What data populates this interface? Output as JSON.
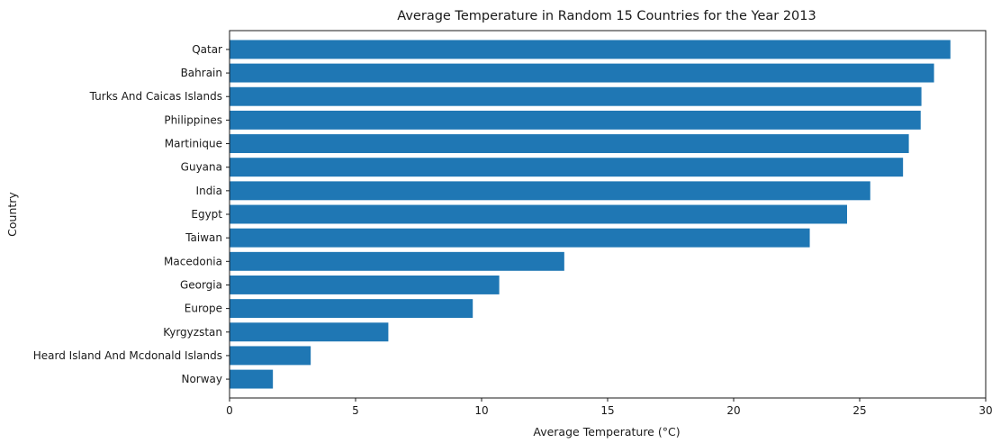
{
  "chart_data": {
    "type": "bar",
    "orientation": "horizontal",
    "title": "Average Temperature in Random 15 Countries for the Year 2013",
    "xlabel": "Average Temperature (°C)",
    "ylabel": "Country",
    "xlim": [
      0,
      30
    ],
    "xticks": [
      0,
      5,
      10,
      15,
      20,
      25,
      30
    ],
    "grid": false,
    "bar_color": "#1f77b4",
    "categories": [
      "Qatar",
      "Bahrain",
      "Turks And Caicas Islands",
      "Philippines",
      "Martinique",
      "Guyana",
      "India",
      "Egypt",
      "Taiwan",
      "Macedonia",
      "Georgia",
      "Europe",
      "Kyrgyzstan",
      "Heard Island And Mcdonald Islands",
      "Norway"
    ],
    "values": [
      28.6,
      27.95,
      27.45,
      27.42,
      26.95,
      26.72,
      25.42,
      24.5,
      23.02,
      13.28,
      10.7,
      9.65,
      6.3,
      3.22,
      1.72
    ]
  }
}
